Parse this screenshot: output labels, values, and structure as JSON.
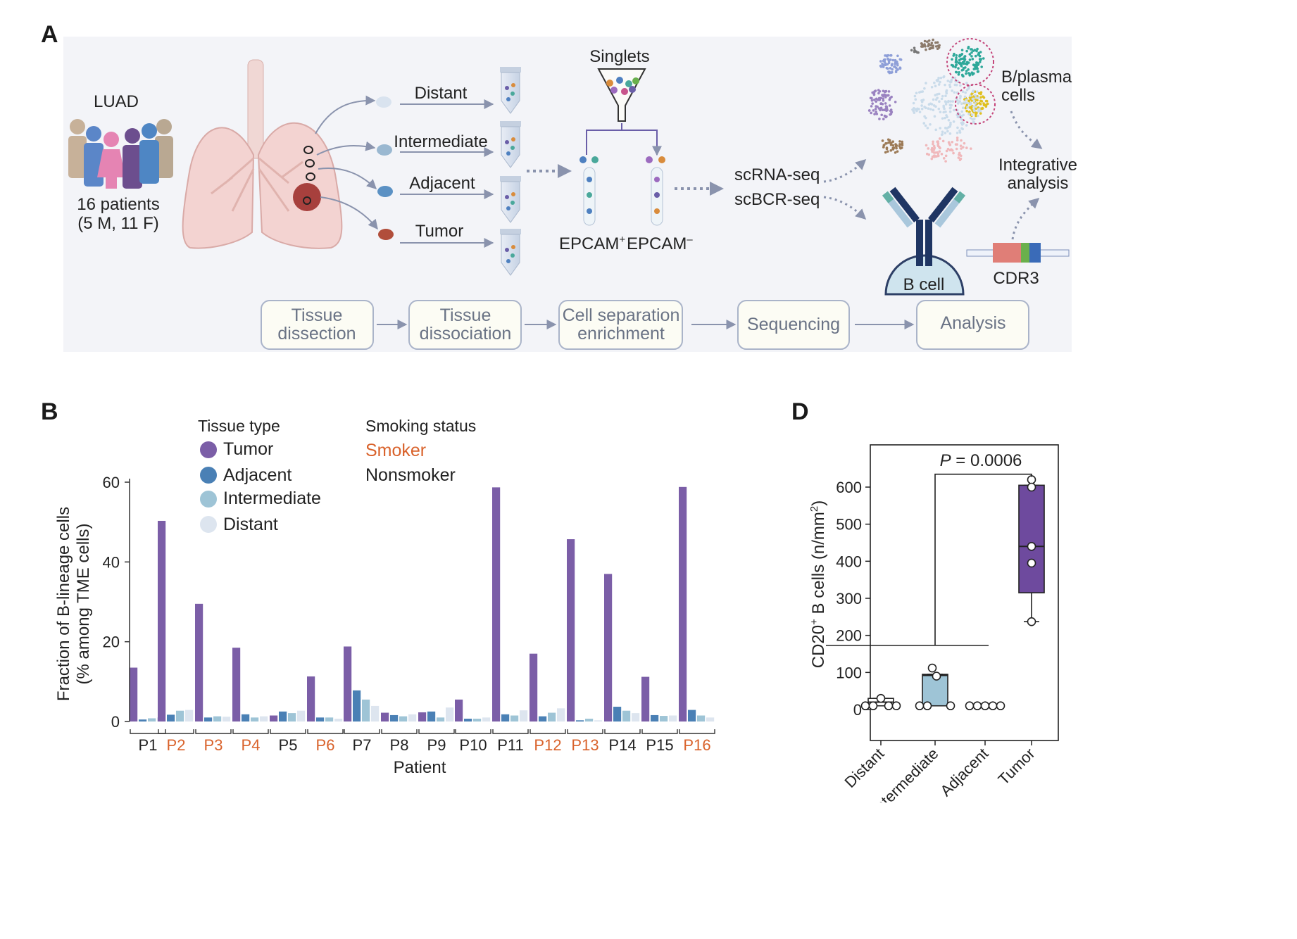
{
  "panels": {
    "a": "A",
    "b": "B",
    "d": "D"
  },
  "panel_a": {
    "cohort_title": "LUAD",
    "cohort_line1": "16 patients",
    "cohort_line2": "(5 M, 11 F)",
    "sample_sites": [
      "Distant",
      "Intermediate",
      "Adjacent",
      "Tumor"
    ],
    "singlets": "Singlets",
    "epcam_pos": "EPCAM",
    "epcam_pos_sup": "+",
    "epcam_neg": "EPCAM",
    "epcam_neg_sup": "–",
    "seq1": "scRNA-seq",
    "seq2": "scBCR-seq",
    "bplasma_line1": "B/plasma",
    "bplasma_line2": "cells",
    "integ_line1": "Integrative",
    "integ_line2": "analysis",
    "bcell": "B cell",
    "cdr3": "CDR3",
    "workflow": [
      {
        "line1": "Tissue",
        "line2": "dissection"
      },
      {
        "line1": "Tissue",
        "line2": "dissociation"
      },
      {
        "line1": "Cell separation",
        "line2": "enrichment"
      },
      {
        "line1": "Sequencing",
        "line2": ""
      },
      {
        "line1": "Analysis",
        "line2": ""
      }
    ],
    "colors": {
      "background": "#f3f4f8",
      "arrow": "#8a93ad",
      "step_border": "#aab4c9",
      "step_fill": "#fcfcf4"
    }
  },
  "chart_data": [
    {
      "type": "bar",
      "panel": "B",
      "xlabel": "Patient",
      "ylabel_line1": "Fraction of B-lineage cells",
      "ylabel_line2": "(% among TME cells)",
      "ylim": [
        0,
        60
      ],
      "yticks": [
        0,
        20,
        40,
        60
      ],
      "legend_title": "Tissue type",
      "smoking_title": "Smoking status",
      "smoking_labels": [
        "Smoker",
        "Nonsmoker"
      ],
      "smoking_colors": {
        "Smoker": "#d9622b",
        "Nonsmoker": "#222222"
      },
      "categories": [
        "P1",
        "P2",
        "P3",
        "P4",
        "P5",
        "P6",
        "P7",
        "P8",
        "P9",
        "P10",
        "P11",
        "P12",
        "P13",
        "P14",
        "P15",
        "P16"
      ],
      "smoker": [
        false,
        true,
        true,
        true,
        false,
        true,
        false,
        false,
        false,
        false,
        false,
        true,
        true,
        false,
        false,
        true
      ],
      "series": [
        {
          "name": "Tumor",
          "color": "#7b5ea7",
          "values": [
            13.5,
            50.3,
            29.5,
            18.5,
            1.5,
            11.3,
            18.8,
            2.2,
            2.3,
            5.5,
            58.7,
            17.0,
            45.7,
            37.0,
            11.2,
            58.8
          ]
        },
        {
          "name": "Adjacent",
          "color": "#4a80b5",
          "values": [
            0.5,
            1.7,
            1.0,
            1.8,
            2.5,
            1.0,
            7.8,
            1.6,
            2.5,
            0.7,
            1.8,
            1.3,
            0.3,
            3.7,
            1.6,
            2.9
          ]
        },
        {
          "name": "Intermediate",
          "color": "#9ec4d6",
          "values": [
            0.8,
            2.7,
            1.3,
            1.0,
            2.1,
            1.0,
            5.5,
            1.3,
            1.0,
            0.7,
            1.5,
            2.2,
            0.7,
            2.7,
            1.4,
            1.5
          ]
        },
        {
          "name": "Distant",
          "color": "#dde5ef",
          "values": [
            1.0,
            2.9,
            1.2,
            1.3,
            2.7,
            0.7,
            3.9,
            1.8,
            3.5,
            1.0,
            2.8,
            3.3,
            0.3,
            2.1,
            1.5,
            1.0
          ]
        }
      ]
    },
    {
      "type": "box",
      "panel": "D",
      "ylabel": "CD20",
      "ylabel_sup": "+",
      "ylabel_rest": " B cells (n/mm",
      "ylabel_sup2": "2",
      "ylabel_end": ")",
      "ylim": [
        -30,
        660
      ],
      "yticks": [
        0,
        100,
        200,
        300,
        400,
        500,
        600
      ],
      "categories": [
        "Distant",
        "Intermediate",
        "Adjacent",
        "Tumor"
      ],
      "box_colors": [
        "#ffffff",
        "#9ec4d6",
        "#ffffff",
        "#6e4a9e"
      ],
      "boxes": [
        {
          "q1": 10,
          "median": 20,
          "q3": 30,
          "whisker_low": 10,
          "whisker_high": 30
        },
        {
          "q1": 10,
          "median": 92,
          "q3": 95,
          "whisker_low": 10,
          "whisker_high": 95
        },
        {
          "q1": 10,
          "median": 10,
          "q3": 10,
          "whisker_low": 10,
          "whisker_high": 10
        },
        {
          "q1": 315,
          "median": 440,
          "q3": 605,
          "whisker_low": 237,
          "whisker_high": 605
        }
      ],
      "points": [
        [
          {
            "y": 10
          },
          {
            "y": 10
          },
          {
            "y": 30
          },
          {
            "y": 10
          },
          {
            "y": 10
          }
        ],
        [
          {
            "y": 10
          },
          {
            "y": 10
          },
          {
            "y": 112
          },
          {
            "y": 90
          },
          {
            "y": 10
          }
        ],
        [
          {
            "y": 10
          },
          {
            "y": 10
          },
          {
            "y": 10
          },
          {
            "y": 10
          },
          {
            "y": 10
          }
        ],
        [
          {
            "y": 620
          },
          {
            "y": 600
          },
          {
            "y": 440
          },
          {
            "y": 395
          },
          {
            "y": 237
          }
        ]
      ],
      "significance": {
        "label_p": "P",
        "label_rest": " = 0.0006",
        "group_line_y": 173,
        "bracket_y": 650
      }
    }
  ]
}
